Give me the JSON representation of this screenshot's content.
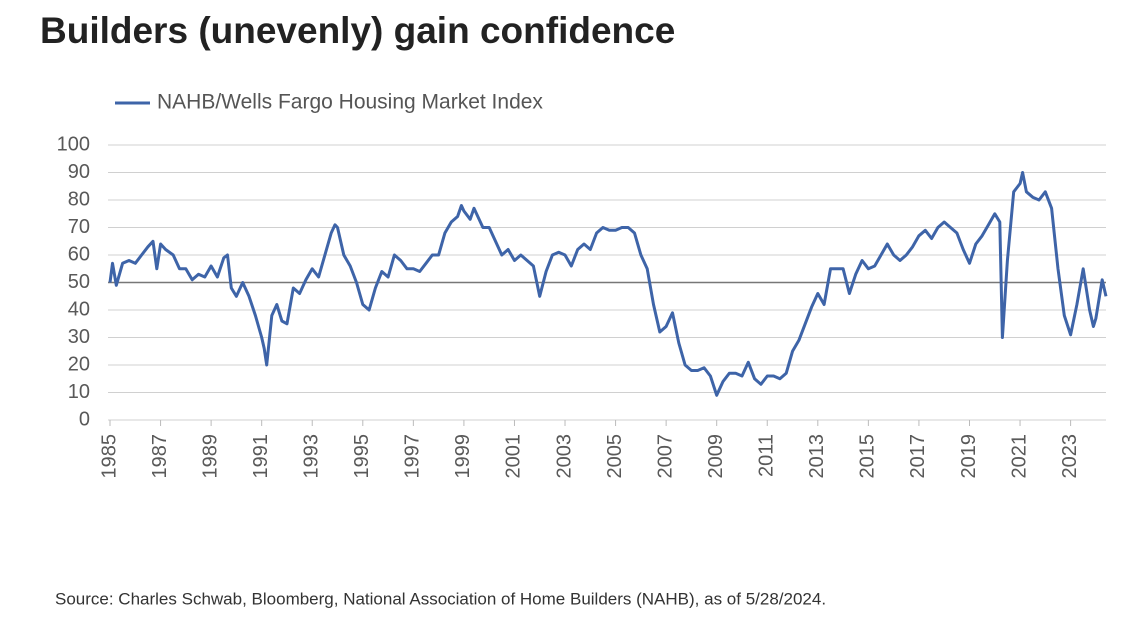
{
  "chart_data": {
    "type": "line",
    "title": "Builders (unevenly) gain confidence",
    "source": "Source: Charles Schwab, Bloomberg, National Association of Home Builders (NAHB), as of 5/28/2024.",
    "x": [
      1985.0,
      1985.1,
      1985.25,
      1985.5,
      1985.75,
      1986.0,
      1986.25,
      1986.5,
      1986.7,
      1986.85,
      1987.0,
      1987.2,
      1987.5,
      1987.75,
      1988.0,
      1988.25,
      1988.5,
      1988.75,
      1989.0,
      1989.25,
      1989.5,
      1989.65,
      1989.8,
      1990.0,
      1990.25,
      1990.5,
      1990.75,
      1991.0,
      1991.1,
      1991.2,
      1991.4,
      1991.6,
      1991.8,
      1992.0,
      1992.25,
      1992.5,
      1992.75,
      1993.0,
      1993.25,
      1993.5,
      1993.75,
      1993.9,
      1994.0,
      1994.25,
      1994.5,
      1994.75,
      1995.0,
      1995.25,
      1995.5,
      1995.75,
      1996.0,
      1996.25,
      1996.5,
      1996.75,
      1997.0,
      1997.25,
      1997.5,
      1997.75,
      1998.0,
      1998.25,
      1998.5,
      1998.75,
      1998.9,
      1999.0,
      1999.25,
      1999.4,
      1999.75,
      2000.0,
      2000.25,
      2000.5,
      2000.75,
      2001.0,
      2001.25,
      2001.5,
      2001.75,
      2002.0,
      2002.25,
      2002.5,
      2002.75,
      2003.0,
      2003.25,
      2003.5,
      2003.75,
      2004.0,
      2004.25,
      2004.5,
      2004.75,
      2005.0,
      2005.25,
      2005.5,
      2005.75,
      2006.0,
      2006.25,
      2006.5,
      2006.75,
      2007.0,
      2007.25,
      2007.5,
      2007.75,
      2008.0,
      2008.25,
      2008.5,
      2008.75,
      2009.0,
      2009.25,
      2009.5,
      2009.75,
      2010.0,
      2010.25,
      2010.5,
      2010.75,
      2011.0,
      2011.25,
      2011.5,
      2011.75,
      2012.0,
      2012.25,
      2012.5,
      2012.75,
      2013.0,
      2013.25,
      2013.5,
      2013.75,
      2014.0,
      2014.25,
      2014.5,
      2014.75,
      2015.0,
      2015.25,
      2015.5,
      2015.75,
      2016.0,
      2016.25,
      2016.5,
      2016.75,
      2017.0,
      2017.25,
      2017.5,
      2017.75,
      2018.0,
      2018.25,
      2018.5,
      2018.75,
      2019.0,
      2019.25,
      2019.5,
      2019.75,
      2020.0,
      2020.2,
      2020.3,
      2020.5,
      2020.75,
      2021.0,
      2021.1,
      2021.25,
      2021.5,
      2021.75,
      2022.0,
      2022.25,
      2022.5,
      2022.75,
      2023.0,
      2023.25,
      2023.5,
      2023.75,
      2023.9,
      2024.0,
      2024.25,
      2024.4
    ],
    "series": [
      {
        "name": "NAHB/Wells Fargo Housing Market Index",
        "color": "#3e64a8",
        "values": [
          50,
          57,
          49,
          57,
          58,
          57,
          60,
          63,
          65,
          55,
          64,
          62,
          60,
          55,
          55,
          51,
          53,
          52,
          56,
          52,
          59,
          60,
          48,
          45,
          50,
          45,
          38,
          30,
          26,
          20,
          38,
          42,
          36,
          35,
          48,
          46,
          51,
          55,
          52,
          60,
          68,
          71,
          70,
          60,
          56,
          50,
          42,
          40,
          48,
          54,
          52,
          60,
          58,
          55,
          55,
          54,
          57,
          60,
          60,
          68,
          72,
          74,
          78,
          76,
          73,
          77,
          70,
          70,
          65,
          60,
          62,
          58,
          60,
          58,
          56,
          45,
          54,
          60,
          61,
          60,
          56,
          62,
          64,
          62,
          68,
          70,
          69,
          69,
          70,
          70,
          68,
          60,
          55,
          42,
          32,
          34,
          39,
          28,
          20,
          18,
          18,
          19,
          16,
          9,
          14,
          17,
          17,
          16,
          21,
          15,
          13,
          16,
          16,
          15,
          17,
          25,
          29,
          35,
          41,
          46,
          42,
          55,
          55,
          55,
          46,
          53,
          58,
          55,
          56,
          60,
          64,
          60,
          58,
          60,
          63,
          67,
          69,
          66,
          70,
          72,
          70,
          68,
          62,
          57,
          64,
          67,
          71,
          75,
          72,
          30,
          58,
          83,
          86,
          90,
          83,
          81,
          80,
          83,
          77,
          55,
          38,
          31,
          42,
          55,
          40,
          34,
          37,
          51,
          45
        ]
      }
    ],
    "xlim": [
      1985,
      2024.4
    ],
    "xticks": [
      1985,
      1987,
      1989,
      1991,
      1993,
      1995,
      1997,
      1999,
      2001,
      2003,
      2005,
      2007,
      2009,
      2011,
      2013,
      2015,
      2017,
      2019,
      2021,
      2023
    ],
    "ylim": [
      0,
      100
    ],
    "yticks": [
      0,
      10,
      20,
      30,
      40,
      50,
      60,
      70,
      80,
      90,
      100
    ],
    "reference_line": 50,
    "grid": true
  }
}
